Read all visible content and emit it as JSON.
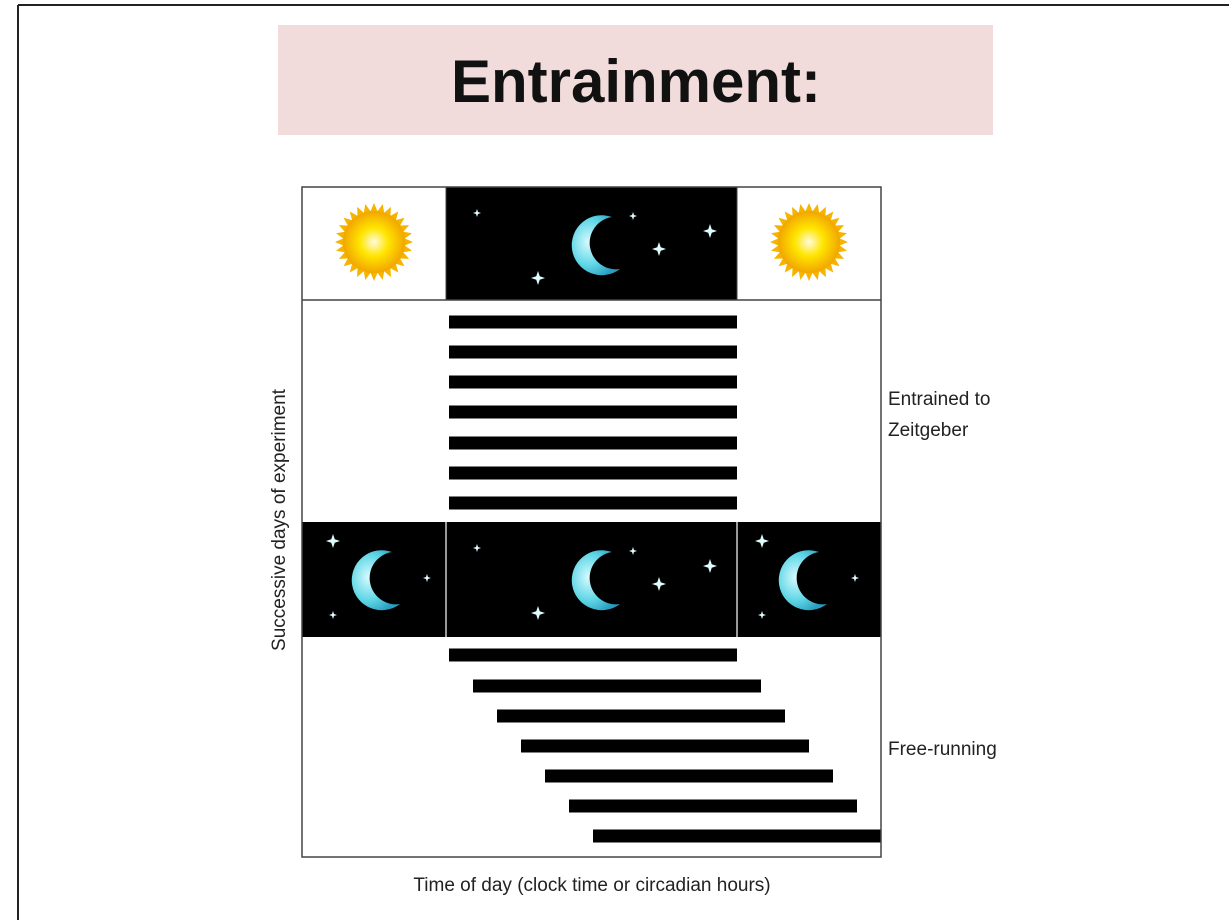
{
  "header": {
    "title": "Entrainment:"
  },
  "diagram": {
    "y_axis_label": "Successive days of experiment",
    "x_axis_label": "Time of day (clock time or circadian hours)",
    "annotations": [
      "Entrained to",
      "Zeitgeber",
      "Free-running"
    ]
  }
}
